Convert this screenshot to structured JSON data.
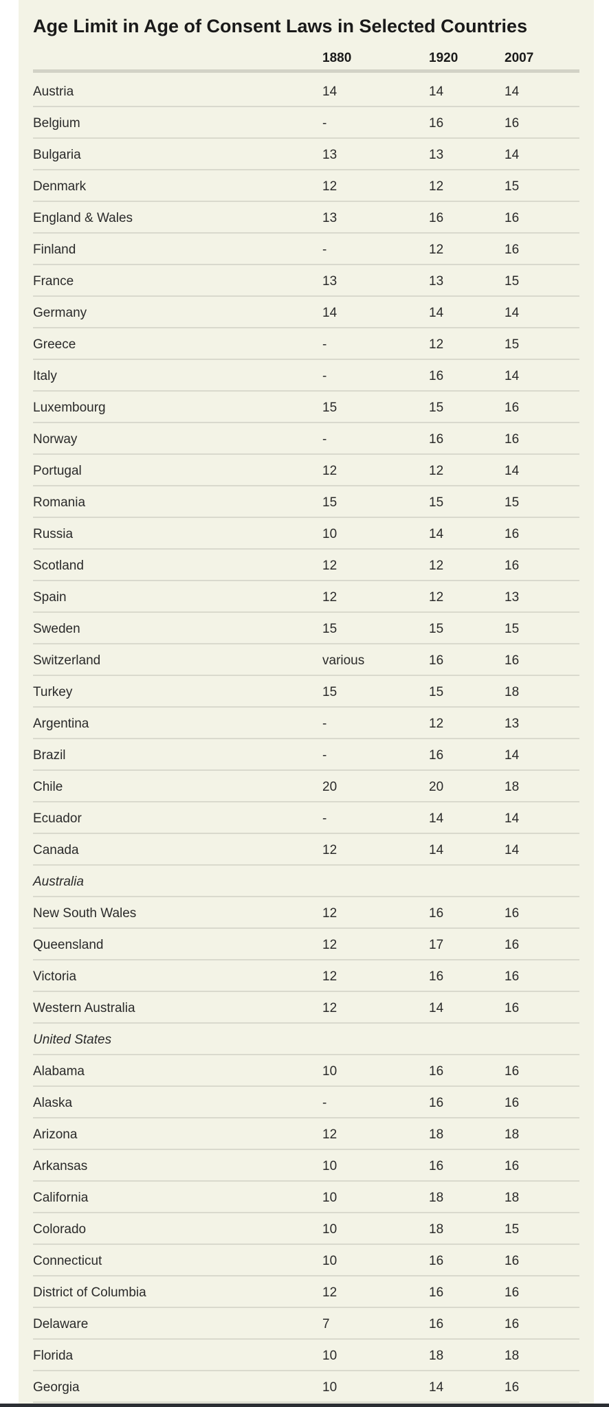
{
  "table": {
    "title": "Age Limit in Age of Consent Laws in Selected Countries",
    "columns": [
      "1880",
      "1920",
      "2007"
    ],
    "rows": [
      {
        "name": "Austria",
        "v1880": "14",
        "v1920": "14",
        "v2007": "14"
      },
      {
        "name": "Belgium",
        "v1880": "-",
        "v1920": "16",
        "v2007": "16"
      },
      {
        "name": "Bulgaria",
        "v1880": "13",
        "v1920": "13",
        "v2007": "14"
      },
      {
        "name": "Denmark",
        "v1880": "12",
        "v1920": "12",
        "v2007": "15"
      },
      {
        "name": "England & Wales",
        "v1880": "13",
        "v1920": "16",
        "v2007": "16"
      },
      {
        "name": "Finland",
        "v1880": "-",
        "v1920": "12",
        "v2007": "16"
      },
      {
        "name": "France",
        "v1880": "13",
        "v1920": "13",
        "v2007": "15"
      },
      {
        "name": "Germany",
        "v1880": "14",
        "v1920": "14",
        "v2007": "14"
      },
      {
        "name": "Greece",
        "v1880": "-",
        "v1920": "12",
        "v2007": "15"
      },
      {
        "name": "Italy",
        "v1880": "-",
        "v1920": "16",
        "v2007": "14"
      },
      {
        "name": "Luxembourg",
        "v1880": "15",
        "v1920": "15",
        "v2007": "16"
      },
      {
        "name": "Norway",
        "v1880": "-",
        "v1920": "16",
        "v2007": "16"
      },
      {
        "name": "Portugal",
        "v1880": "12",
        "v1920": "12",
        "v2007": "14"
      },
      {
        "name": "Romania",
        "v1880": "15",
        "v1920": "15",
        "v2007": "15"
      },
      {
        "name": "Russia",
        "v1880": "10",
        "v1920": "14",
        "v2007": "16"
      },
      {
        "name": "Scotland",
        "v1880": "12",
        "v1920": "12",
        "v2007": "16"
      },
      {
        "name": "Spain",
        "v1880": "12",
        "v1920": "12",
        "v2007": "13"
      },
      {
        "name": "Sweden",
        "v1880": "15",
        "v1920": "15",
        "v2007": "15"
      },
      {
        "name": "Switzerland",
        "v1880": "various",
        "v1920": "16",
        "v2007": "16"
      },
      {
        "name": "Turkey",
        "v1880": "15",
        "v1920": "15",
        "v2007": "18"
      },
      {
        "name": "Argentina",
        "v1880": "-",
        "v1920": "12",
        "v2007": "13"
      },
      {
        "name": "Brazil",
        "v1880": "-",
        "v1920": "16",
        "v2007": "14"
      },
      {
        "name": "Chile",
        "v1880": "20",
        "v1920": "20",
        "v2007": "18"
      },
      {
        "name": "Ecuador",
        "v1880": "-",
        "v1920": "14",
        "v2007": "14"
      },
      {
        "name": "Canada",
        "v1880": "12",
        "v1920": "14",
        "v2007": "14"
      },
      {
        "name": "Australia",
        "group": true,
        "v1880": "",
        "v1920": "",
        "v2007": ""
      },
      {
        "name": "New South Wales",
        "v1880": "12",
        "v1920": "16",
        "v2007": "16"
      },
      {
        "name": "Queensland",
        "v1880": "12",
        "v1920": "17",
        "v2007": "16"
      },
      {
        "name": "Victoria",
        "v1880": "12",
        "v1920": "16",
        "v2007": "16"
      },
      {
        "name": "Western Australia",
        "v1880": "12",
        "v1920": "14",
        "v2007": "16"
      },
      {
        "name": "United States",
        "group": true,
        "v1880": "",
        "v1920": "",
        "v2007": ""
      },
      {
        "name": "Alabama",
        "v1880": "10",
        "v1920": "16",
        "v2007": "16"
      },
      {
        "name": "Alaska",
        "v1880": "-",
        "v1920": "16",
        "v2007": "16"
      },
      {
        "name": "Arizona",
        "v1880": "12",
        "v1920": "18",
        "v2007": "18"
      },
      {
        "name": "Arkansas",
        "v1880": "10",
        "v1920": "16",
        "v2007": "16"
      },
      {
        "name": "California",
        "v1880": "10",
        "v1920": "18",
        "v2007": "18"
      },
      {
        "name": "Colorado",
        "v1880": "10",
        "v1920": "18",
        "v2007": "15"
      },
      {
        "name": "Connecticut",
        "v1880": "10",
        "v1920": "16",
        "v2007": "16"
      },
      {
        "name": "District of Columbia",
        "v1880": "12",
        "v1920": "16",
        "v2007": "16"
      },
      {
        "name": "Delaware",
        "v1880": "7",
        "v1920": "16",
        "v2007": "16"
      },
      {
        "name": "Florida",
        "v1880": "10",
        "v1920": "18",
        "v2007": "18"
      },
      {
        "name": "Georgia",
        "v1880": "10",
        "v1920": "14",
        "v2007": "16"
      }
    ]
  }
}
